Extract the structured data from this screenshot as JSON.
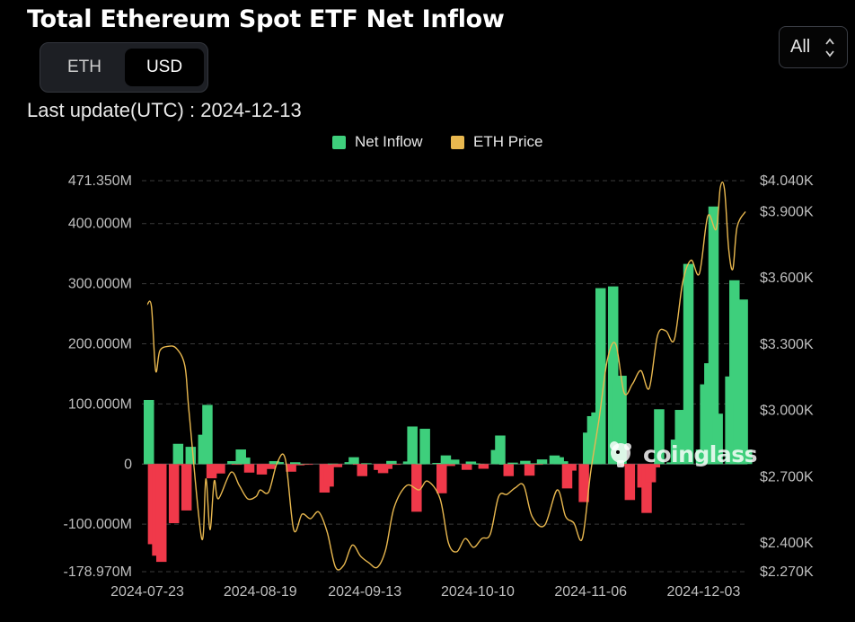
{
  "header": {
    "title": "Total Ethereum Spot ETF Net Inflow",
    "toggle": {
      "eth_label": "ETH",
      "usd_label": "USD",
      "selected": "USD"
    },
    "range_select": {
      "value": "All"
    },
    "last_update_label": "Last update(UTC) :",
    "last_update_value": "2024-12-13"
  },
  "legend": {
    "items": [
      {
        "label": "Net Inflow",
        "color": "#3ecf7c"
      },
      {
        "label": "ETH Price",
        "color": "#e9b84f"
      }
    ]
  },
  "watermark": {
    "text": "coinglass"
  },
  "chart_data": {
    "type": "bar+line",
    "title": "Total Ethereum Spot ETF Net Inflow",
    "positive_color": "#3ecf7c",
    "negative_color": "#f0394a",
    "line_color": "#e9b84f",
    "y_left": {
      "ticks": [
        471.35,
        400,
        300,
        200,
        100,
        0,
        -100,
        -178.97
      ],
      "tick_labels": [
        "471.350M",
        "400.000M",
        "300.000M",
        "200.000M",
        "100.000M",
        "0",
        "-100.000M",
        "-178.970M"
      ],
      "range": [
        -178.97,
        471.35
      ]
    },
    "y_right": {
      "ticks": [
        4040,
        3900,
        3600,
        3300,
        3000,
        2700,
        2400,
        2270
      ],
      "tick_labels": [
        "$4.040K",
        "$3.900K",
        "$3.600K",
        "$3.300K",
        "$3.000K",
        "$2.700K",
        "$2.400K",
        "$2.270K"
      ],
      "range": [
        2270,
        4040
      ]
    },
    "x_tick_labels": [
      "2024-07-23",
      "2024-08-19",
      "2024-09-13",
      "2024-10-10",
      "2024-11-06",
      "2024-12-03"
    ],
    "x_tick_dates": [
      "2024-07-23",
      "2024-08-19",
      "2024-09-13",
      "2024-10-10",
      "2024-11-06",
      "2024-12-03"
    ],
    "net_inflow": [
      [
        "2024-07-23",
        106.6
      ],
      [
        "2024-07-24",
        -133.3
      ],
      [
        "2024-07-25",
        -152.4
      ],
      [
        "2024-07-26",
        -162.7
      ],
      [
        "2024-07-29",
        -98.3
      ],
      [
        "2024-07-30",
        33.7
      ],
      [
        "2024-07-31",
        -1.9
      ],
      [
        "2024-08-01",
        -77.2
      ],
      [
        "2024-08-02",
        28.7
      ],
      [
        "2024-08-05",
        48.8
      ],
      [
        "2024-08-06",
        98.4
      ],
      [
        "2024-08-07",
        -23.7
      ],
      [
        "2024-08-08",
        -2.9
      ],
      [
        "2024-08-09",
        -15.7
      ],
      [
        "2024-08-12",
        4.9
      ],
      [
        "2024-08-13",
        -0.6
      ],
      [
        "2024-08-14",
        24.3
      ],
      [
        "2024-08-15",
        10.8
      ],
      [
        "2024-08-16",
        -14.2
      ],
      [
        "2024-08-19",
        -17.4
      ],
      [
        "2024-08-20",
        -3.3
      ],
      [
        "2024-08-21",
        -8.2
      ],
      [
        "2024-08-22",
        4.8
      ],
      [
        "2024-08-23",
        3.3
      ],
      [
        "2024-08-26",
        -12.7
      ],
      [
        "2024-08-27",
        3.0
      ],
      [
        "2024-08-28",
        -2.1
      ],
      [
        "2024-08-29",
        0.5
      ],
      [
        "2024-08-30",
        -1.0
      ],
      [
        "2024-09-03",
        -47.4
      ],
      [
        "2024-09-04",
        -37.5
      ],
      [
        "2024-09-05",
        0.8
      ],
      [
        "2024-09-06",
        -5.2
      ],
      [
        "2024-09-09",
        3.2
      ],
      [
        "2024-09-10",
        11.4
      ],
      [
        "2024-09-11",
        -0.7
      ],
      [
        "2024-09-12",
        -20.1
      ],
      [
        "2024-09-13",
        1.4
      ],
      [
        "2024-09-16",
        -9.8
      ],
      [
        "2024-09-17",
        -15.1
      ],
      [
        "2024-09-18",
        -8.1
      ],
      [
        "2024-09-19",
        5.2
      ],
      [
        "2024-09-20",
        -0.9
      ],
      [
        "2024-09-23",
        4.3
      ],
      [
        "2024-09-24",
        62.5
      ],
      [
        "2024-09-25",
        -79.3
      ],
      [
        "2024-09-26",
        0.9
      ],
      [
        "2024-09-27",
        58.7
      ],
      [
        "2024-09-30",
        1.9
      ],
      [
        "2024-10-01",
        -48.6
      ],
      [
        "2024-10-02",
        14.4
      ],
      [
        "2024-10-03",
        -3.2
      ],
      [
        "2024-10-04",
        7.4
      ],
      [
        "2024-10-07",
        -9.6
      ],
      [
        "2024-10-08",
        4.2
      ],
      [
        "2024-10-09",
        1.1
      ],
      [
        "2024-10-10",
        0.5
      ],
      [
        "2024-10-11",
        -7.8
      ],
      [
        "2024-10-14",
        23.4
      ],
      [
        "2024-10-15",
        47.5
      ],
      [
        "2024-10-16",
        0.2
      ],
      [
        "2024-10-17",
        -20.1
      ],
      [
        "2024-10-18",
        2.4
      ],
      [
        "2024-10-21",
        5.4
      ],
      [
        "2024-10-22",
        -19.3
      ],
      [
        "2024-10-23",
        1.3
      ],
      [
        "2024-10-24",
        -0.3
      ],
      [
        "2024-10-25",
        7.7
      ],
      [
        "2024-10-28",
        14.3
      ],
      [
        "2024-10-29",
        11.4
      ],
      [
        "2024-10-30",
        4.7
      ],
      [
        "2024-10-31",
        -40.5
      ],
      [
        "2024-11-01",
        -10.9
      ],
      [
        "2024-11-04",
        -63.2
      ],
      [
        "2024-11-05",
        52.3
      ],
      [
        "2024-11-06",
        79.7
      ],
      [
        "2024-11-07",
        85.9
      ],
      [
        "2024-11-08",
        292.6
      ],
      [
        "2024-11-11",
        295.5
      ],
      [
        "2024-11-12",
        135.9
      ],
      [
        "2024-11-13",
        146.9
      ],
      [
        "2024-11-14",
        -3.2
      ],
      [
        "2024-11-15",
        -59.8
      ],
      [
        "2024-11-18",
        -39.1
      ],
      [
        "2024-11-19",
        -81.3
      ],
      [
        "2024-11-20",
        -30.3
      ],
      [
        "2024-11-21",
        -5.6
      ],
      [
        "2024-11-22",
        91.2
      ],
      [
        "2024-11-25",
        2.8
      ],
      [
        "2024-11-26",
        40.7
      ],
      [
        "2024-11-27",
        90.1
      ],
      [
        "2024-11-29",
        332.9
      ],
      [
        "2024-12-02",
        24.2
      ],
      [
        "2024-12-03",
        132.6
      ],
      [
        "2024-12-04",
        167.7
      ],
      [
        "2024-12-05",
        428.4
      ],
      [
        "2024-12-06",
        83.8
      ],
      [
        "2024-12-09",
        145.7
      ],
      [
        "2024-12-10",
        305.7
      ],
      [
        "2024-12-11",
        102.1
      ],
      [
        "2024-12-12",
        273.7
      ],
      [
        "2024-12-13",
        23.9
      ]
    ],
    "eth_price": [
      [
        "2024-07-23",
        3480
      ],
      [
        "2024-07-24",
        3470
      ],
      [
        "2024-07-25",
        3180
      ],
      [
        "2024-07-26",
        3270
      ],
      [
        "2024-07-28",
        3290
      ],
      [
        "2024-07-30",
        3280
      ],
      [
        "2024-08-01",
        3200
      ],
      [
        "2024-08-02",
        2990
      ],
      [
        "2024-08-05",
        2420
      ],
      [
        "2024-08-06",
        2690
      ],
      [
        "2024-08-07",
        2460
      ],
      [
        "2024-08-08",
        2680
      ],
      [
        "2024-08-09",
        2600
      ],
      [
        "2024-08-12",
        2720
      ],
      [
        "2024-08-14",
        2660
      ],
      [
        "2024-08-16",
        2600
      ],
      [
        "2024-08-18",
        2610
      ],
      [
        "2024-08-19",
        2640
      ],
      [
        "2024-08-21",
        2630
      ],
      [
        "2024-08-23",
        2760
      ],
      [
        "2024-08-25",
        2780
      ],
      [
        "2024-08-27",
        2460
      ],
      [
        "2024-08-29",
        2530
      ],
      [
        "2024-08-31",
        2510
      ],
      [
        "2024-09-02",
        2540
      ],
      [
        "2024-09-04",
        2450
      ],
      [
        "2024-09-06",
        2290
      ],
      [
        "2024-09-08",
        2300
      ],
      [
        "2024-09-10",
        2390
      ],
      [
        "2024-09-12",
        2340
      ],
      [
        "2024-09-14",
        2310
      ],
      [
        "2024-09-16",
        2290
      ],
      [
        "2024-09-18",
        2370
      ],
      [
        "2024-09-20",
        2560
      ],
      [
        "2024-09-23",
        2660
      ],
      [
        "2024-09-26",
        2640
      ],
      [
        "2024-09-28",
        2680
      ],
      [
        "2024-10-01",
        2600
      ],
      [
        "2024-10-03",
        2400
      ],
      [
        "2024-10-05",
        2360
      ],
      [
        "2024-10-07",
        2420
      ],
      [
        "2024-10-09",
        2380
      ],
      [
        "2024-10-11",
        2420
      ],
      [
        "2024-10-13",
        2440
      ],
      [
        "2024-10-15",
        2610
      ],
      [
        "2024-10-17",
        2620
      ],
      [
        "2024-10-19",
        2650
      ],
      [
        "2024-10-21",
        2660
      ],
      [
        "2024-10-23",
        2520
      ],
      [
        "2024-10-26",
        2480
      ],
      [
        "2024-10-29",
        2640
      ],
      [
        "2024-10-31",
        2520
      ],
      [
        "2024-11-02",
        2490
      ],
      [
        "2024-11-04",
        2420
      ],
      [
        "2024-11-06",
        2720
      ],
      [
        "2024-11-08",
        2960
      ],
      [
        "2024-11-10",
        3230
      ],
      [
        "2024-11-12",
        3300
      ],
      [
        "2024-11-14",
        3080
      ],
      [
        "2024-11-16",
        3120
      ],
      [
        "2024-11-18",
        3180
      ],
      [
        "2024-11-20",
        3100
      ],
      [
        "2024-11-22",
        3340
      ],
      [
        "2024-11-24",
        3360
      ],
      [
        "2024-11-26",
        3320
      ],
      [
        "2024-11-28",
        3580
      ],
      [
        "2024-11-30",
        3680
      ],
      [
        "2024-12-02",
        3620
      ],
      [
        "2024-12-04",
        3880
      ],
      [
        "2024-12-06",
        3820
      ],
      [
        "2024-12-07",
        4010
      ],
      [
        "2024-12-08",
        4000
      ],
      [
        "2024-12-09",
        3730
      ],
      [
        "2024-12-10",
        3640
      ],
      [
        "2024-12-11",
        3830
      ],
      [
        "2024-12-13",
        3900
      ]
    ]
  }
}
